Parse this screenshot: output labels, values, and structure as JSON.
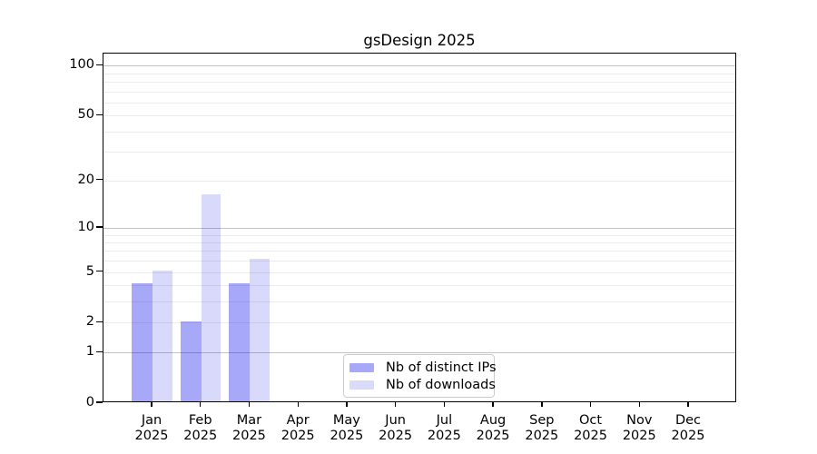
{
  "chart_data": {
    "type": "bar",
    "title": "gsDesign 2025",
    "scale": "log10(1+x)",
    "categories": [
      "Jan",
      "Feb",
      "Mar",
      "Apr",
      "May",
      "Jun",
      "Jul",
      "Aug",
      "Sep",
      "Oct",
      "Nov",
      "Dec"
    ],
    "year_label": "2025",
    "series": [
      {
        "name": "Nb of distinct IPs",
        "values": [
          4,
          2,
          4,
          0,
          0,
          0,
          0,
          0,
          0,
          0,
          0,
          0
        ],
        "fill": "rgba(0,0,235,0.34)",
        "legend_swatch": "#a8a8f8"
      },
      {
        "name": "Nb of downloads",
        "values": [
          5,
          16,
          6,
          0,
          0,
          0,
          0,
          0,
          0,
          0,
          0,
          0
        ],
        "fill": "rgba(0,0,235,0.15)",
        "legend_swatch": "#dadaf9"
      }
    ],
    "xlabel": "",
    "ylabel": "",
    "yticks": [
      0,
      1,
      2,
      5,
      10,
      20,
      50,
      100
    ],
    "yticklabels": [
      "0",
      "1",
      "2",
      "5",
      "10",
      "20",
      "50",
      "100"
    ],
    "minor_gridlines": [
      2,
      3,
      4,
      5,
      6,
      7,
      8,
      9,
      20,
      30,
      40,
      50,
      60,
      70,
      80,
      90
    ],
    "major_gridlines": [
      1,
      10,
      100
    ],
    "ylim": [
      0,
      116
    ],
    "grid": true,
    "legend_position": "inside lower-center-left"
  },
  "colors": {
    "bar_distinct_ips": "#a8a8f8",
    "bar_downloads": "#dadaf9",
    "grid_minor": "#ebebeb",
    "grid_major": "#c3c3c3",
    "axis": "#000000",
    "legend_border": "#cccccc",
    "text": "#000000"
  }
}
